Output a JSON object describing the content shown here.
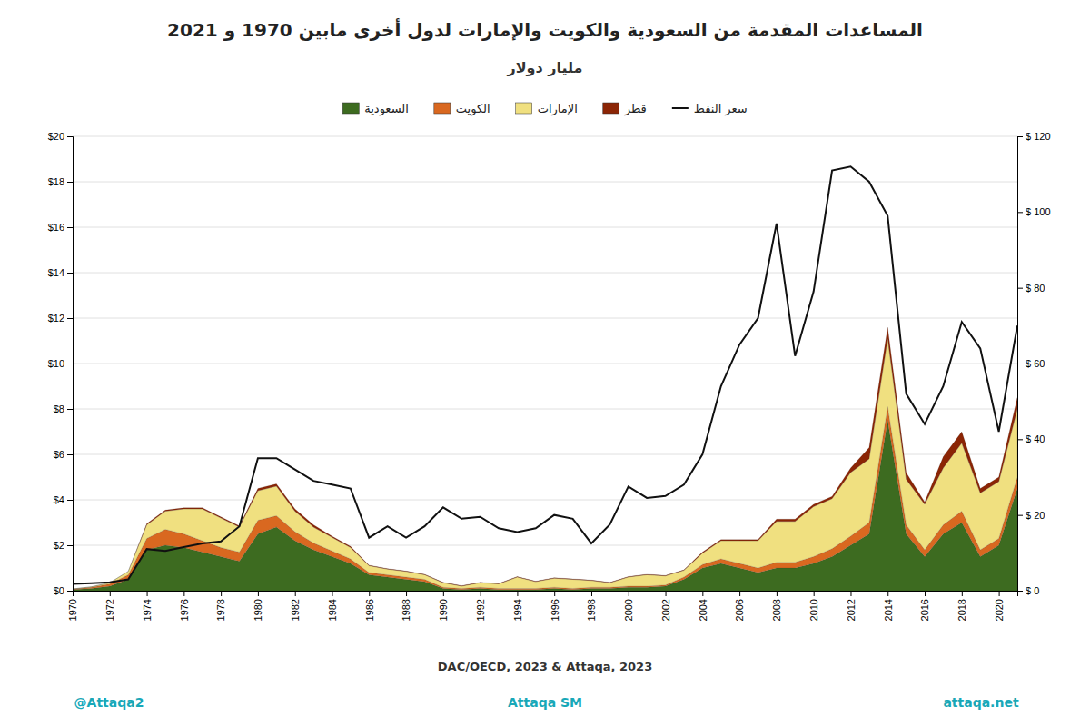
{
  "chart_data": {
    "type": "area",
    "title": "المساعدات المقدمة من السعودية والكويت والإمارات لدول أخرى مابين 1970 و 2021",
    "subtitle": "مليار دولار",
    "x": [
      1970,
      1971,
      1972,
      1973,
      1974,
      1975,
      1976,
      1977,
      1978,
      1979,
      1980,
      1981,
      1982,
      1983,
      1984,
      1985,
      1986,
      1987,
      1988,
      1989,
      1990,
      1991,
      1992,
      1993,
      1994,
      1995,
      1996,
      1997,
      1998,
      1999,
      2000,
      2001,
      2002,
      2003,
      2004,
      2005,
      2006,
      2007,
      2008,
      2009,
      2010,
      2011,
      2012,
      2013,
      2014,
      2015,
      2016,
      2017,
      2018,
      2019,
      2020,
      2021
    ],
    "xlim": [
      1970,
      2021
    ],
    "xticks": [
      1970,
      1972,
      1974,
      1976,
      1978,
      1980,
      1982,
      1984,
      1986,
      1988,
      1990,
      1992,
      1994,
      1996,
      1998,
      2000,
      2002,
      2004,
      2006,
      2008,
      2010,
      2012,
      2014,
      2016,
      2018,
      2020
    ],
    "ylim": [
      0,
      20
    ],
    "yticks": [
      {
        "value": 0,
        "label": "$0"
      },
      {
        "value": 2,
        "label": "$2"
      },
      {
        "value": 4,
        "label": "$4"
      },
      {
        "value": 6,
        "label": "$6"
      },
      {
        "value": 8,
        "label": "$8"
      },
      {
        "value": 10,
        "label": "$10"
      },
      {
        "value": 12,
        "label": "$12"
      },
      {
        "value": 14,
        "label": "$14"
      },
      {
        "value": 16,
        "label": "$16"
      },
      {
        "value": 18,
        "label": "$18"
      },
      {
        "value": 20,
        "label": "$20"
      }
    ],
    "y2lim": [
      0,
      120
    ],
    "y2ticks": [
      {
        "value": 0,
        "label": "$ 0"
      },
      {
        "value": 20,
        "label": "$ 20"
      },
      {
        "value": 40,
        "label": "$ 40"
      },
      {
        "value": 60,
        "label": "$ 60"
      },
      {
        "value": 80,
        "label": "$ 80"
      },
      {
        "value": 100,
        "label": "$ 100"
      },
      {
        "value": 120,
        "label": "$ 120"
      }
    ],
    "stacked": true,
    "grid": true,
    "legend": "top",
    "series": [
      {
        "name": "السعودية",
        "color": "#3d6b20",
        "type": "area",
        "values": [
          0.05,
          0.1,
          0.2,
          0.5,
          1.8,
          2.0,
          1.9,
          1.7,
          1.5,
          1.3,
          2.5,
          2.8,
          2.2,
          1.8,
          1.5,
          1.2,
          0.7,
          0.6,
          0.5,
          0.4,
          0.1,
          0.05,
          0.1,
          0.05,
          0.05,
          0.05,
          0.1,
          0.05,
          0.1,
          0.1,
          0.15,
          0.15,
          0.2,
          0.5,
          1.0,
          1.2,
          1.0,
          0.8,
          1.0,
          1.0,
          1.2,
          1.5,
          2.0,
          2.5,
          7.5,
          2.5,
          1.5,
          2.5,
          3.0,
          1.5,
          2.0,
          4.5
        ]
      },
      {
        "name": "الكويت",
        "color": "#d96820",
        "type": "area",
        "values": [
          0.02,
          0.05,
          0.1,
          0.2,
          0.5,
          0.7,
          0.6,
          0.5,
          0.4,
          0.4,
          0.6,
          0.5,
          0.4,
          0.3,
          0.25,
          0.2,
          0.1,
          0.1,
          0.1,
          0.1,
          0.05,
          0.05,
          0.05,
          0.05,
          0.05,
          0.05,
          0.05,
          0.05,
          0.05,
          0.05,
          0.05,
          0.05,
          0.05,
          0.1,
          0.15,
          0.2,
          0.2,
          0.2,
          0.25,
          0.25,
          0.3,
          0.35,
          0.4,
          0.5,
          0.6,
          0.4,
          0.3,
          0.4,
          0.5,
          0.3,
          0.3,
          0.5
        ]
      },
      {
        "name": "الإمارات",
        "color": "#f0e080",
        "type": "area",
        "values": [
          0.01,
          0.02,
          0.05,
          0.15,
          0.6,
          0.8,
          1.1,
          1.4,
          1.3,
          1.1,
          1.3,
          1.3,
          0.9,
          0.7,
          0.6,
          0.5,
          0.3,
          0.25,
          0.25,
          0.2,
          0.2,
          0.1,
          0.2,
          0.2,
          0.5,
          0.3,
          0.4,
          0.4,
          0.3,
          0.2,
          0.4,
          0.5,
          0.4,
          0.3,
          0.5,
          0.8,
          1.0,
          1.2,
          1.8,
          1.8,
          2.2,
          2.2,
          2.8,
          2.8,
          3.0,
          2.0,
          2.0,
          2.5,
          3.0,
          2.5,
          2.5,
          3.0
        ]
      },
      {
        "name": "قطر",
        "color": "#8b2505",
        "type": "area",
        "values": [
          0.0,
          0.0,
          0.0,
          0.0,
          0.05,
          0.05,
          0.05,
          0.05,
          0.05,
          0.05,
          0.1,
          0.1,
          0.1,
          0.1,
          0.05,
          0.05,
          0.02,
          0.02,
          0.02,
          0.02,
          0.02,
          0.02,
          0.02,
          0.02,
          0.02,
          0.02,
          0.02,
          0.02,
          0.02,
          0.02,
          0.02,
          0.02,
          0.02,
          0.02,
          0.05,
          0.05,
          0.05,
          0.05,
          0.1,
          0.1,
          0.1,
          0.1,
          0.2,
          0.5,
          0.5,
          0.3,
          0.1,
          0.5,
          0.5,
          0.2,
          0.2,
          0.5
        ]
      },
      {
        "name": "سعر النفط",
        "color": "#111111",
        "type": "line",
        "axis": "y2",
        "values": [
          1.8,
          2.0,
          2.2,
          3.0,
          11.0,
          10.5,
          11.5,
          12.5,
          13.0,
          17.0,
          35.0,
          35.0,
          32.0,
          29.0,
          28.0,
          27.0,
          14.0,
          17.0,
          14.0,
          17.0,
          22.0,
          19.0,
          19.5,
          16.5,
          15.5,
          16.5,
          20.0,
          19.0,
          12.5,
          17.5,
          27.5,
          24.5,
          25.0,
          28.0,
          36.0,
          54.0,
          65.0,
          72.0,
          97.0,
          62.0,
          79.0,
          111.0,
          112.0,
          108.0,
          99.0,
          52.0,
          44.0,
          54.0,
          71.0,
          64.0,
          42.0,
          70.0
        ]
      }
    ],
    "annotations": [
      "DAC/OECD, 2023 & Attaqa, 2023",
      "@Attaqa2",
      "Attaqa SM",
      "attaqa.net"
    ]
  }
}
